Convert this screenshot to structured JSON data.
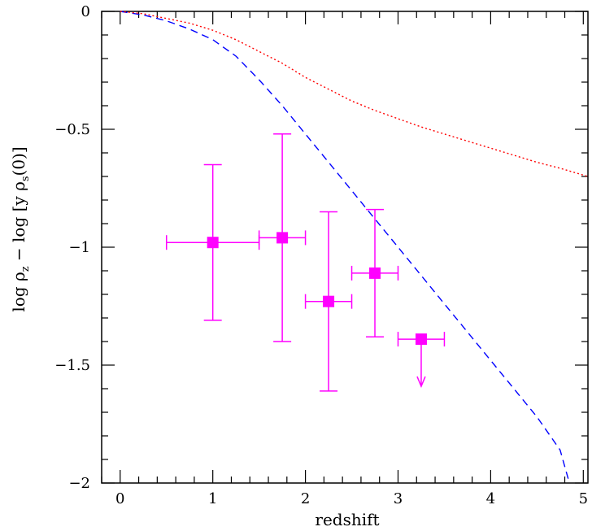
{
  "chart_data": {
    "type": "scatter",
    "title": "",
    "xlabel": "redshift",
    "ylabel": {
      "prefix": "log ρ",
      "prefix_sub": "z",
      "middle": " − log [y ρ",
      "middle_sub": "s",
      "suffix": "(0)]"
    },
    "xlim": [
      -0.2,
      5.05
    ],
    "ylim": [
      -2,
      0
    ],
    "x_ticks": [
      0,
      1,
      2,
      3,
      4,
      5
    ],
    "x_tick_labels": [
      "0",
      "1",
      "2",
      "3",
      "4",
      "5"
    ],
    "y_ticks": [
      0,
      -0.5,
      -1,
      -1.5,
      -2
    ],
    "y_tick_labels": [
      "0",
      "−0.5",
      "−1",
      "−1.5",
      "−2"
    ],
    "grid": false,
    "points": [
      {
        "x": 1.0,
        "y": -0.98,
        "xerr": [
          0.5,
          0.5
        ],
        "yerr_low": 0.33,
        "yerr_high": 0.33,
        "upper_limit": false
      },
      {
        "x": 1.75,
        "y": -0.96,
        "xerr": [
          0.25,
          0.25
        ],
        "yerr_low": 0.44,
        "yerr_high": 0.44,
        "upper_limit": false
      },
      {
        "x": 2.25,
        "y": -1.23,
        "xerr": [
          0.25,
          0.25
        ],
        "yerr_low": 0.38,
        "yerr_high": 0.38,
        "upper_limit": false
      },
      {
        "x": 2.75,
        "y": -1.11,
        "xerr": [
          0.25,
          0.25
        ],
        "yerr_low": 0.27,
        "yerr_high": 0.27,
        "upper_limit": false
      },
      {
        "x": 3.25,
        "y": -1.39,
        "xerr": [
          0.25,
          0.25
        ],
        "yerr_low": 0,
        "yerr_high": 0,
        "upper_limit": true
      }
    ],
    "series": [
      {
        "style": "dashed",
        "color": "#0000ff",
        "x": [
          0,
          0.25,
          0.5,
          0.75,
          1.0,
          1.25,
          1.5,
          1.75,
          2.0,
          2.25,
          2.5,
          2.75,
          3.0,
          3.25,
          3.5,
          3.75,
          4.0,
          4.25,
          4.5,
          4.75,
          4.85
        ],
        "y": [
          0,
          -0.015,
          -0.04,
          -0.075,
          -0.12,
          -0.19,
          -0.29,
          -0.4,
          -0.52,
          -0.64,
          -0.76,
          -0.88,
          -1.0,
          -1.12,
          -1.24,
          -1.36,
          -1.48,
          -1.6,
          -1.72,
          -1.86,
          -2.0
        ]
      },
      {
        "style": "dotted",
        "color": "#ff0000",
        "x": [
          0,
          0.25,
          0.5,
          0.75,
          1.0,
          1.25,
          1.5,
          1.75,
          2.0,
          2.25,
          2.5,
          2.75,
          3.0,
          3.25,
          3.5,
          3.75,
          4.0,
          4.25,
          4.5,
          4.75,
          5.05
        ],
        "y": [
          0,
          -0.01,
          -0.03,
          -0.05,
          -0.08,
          -0.12,
          -0.17,
          -0.22,
          -0.28,
          -0.33,
          -0.38,
          -0.42,
          -0.455,
          -0.49,
          -0.52,
          -0.55,
          -0.58,
          -0.61,
          -0.64,
          -0.665,
          -0.7
        ]
      }
    ],
    "marker_color": "#ff00ff"
  }
}
